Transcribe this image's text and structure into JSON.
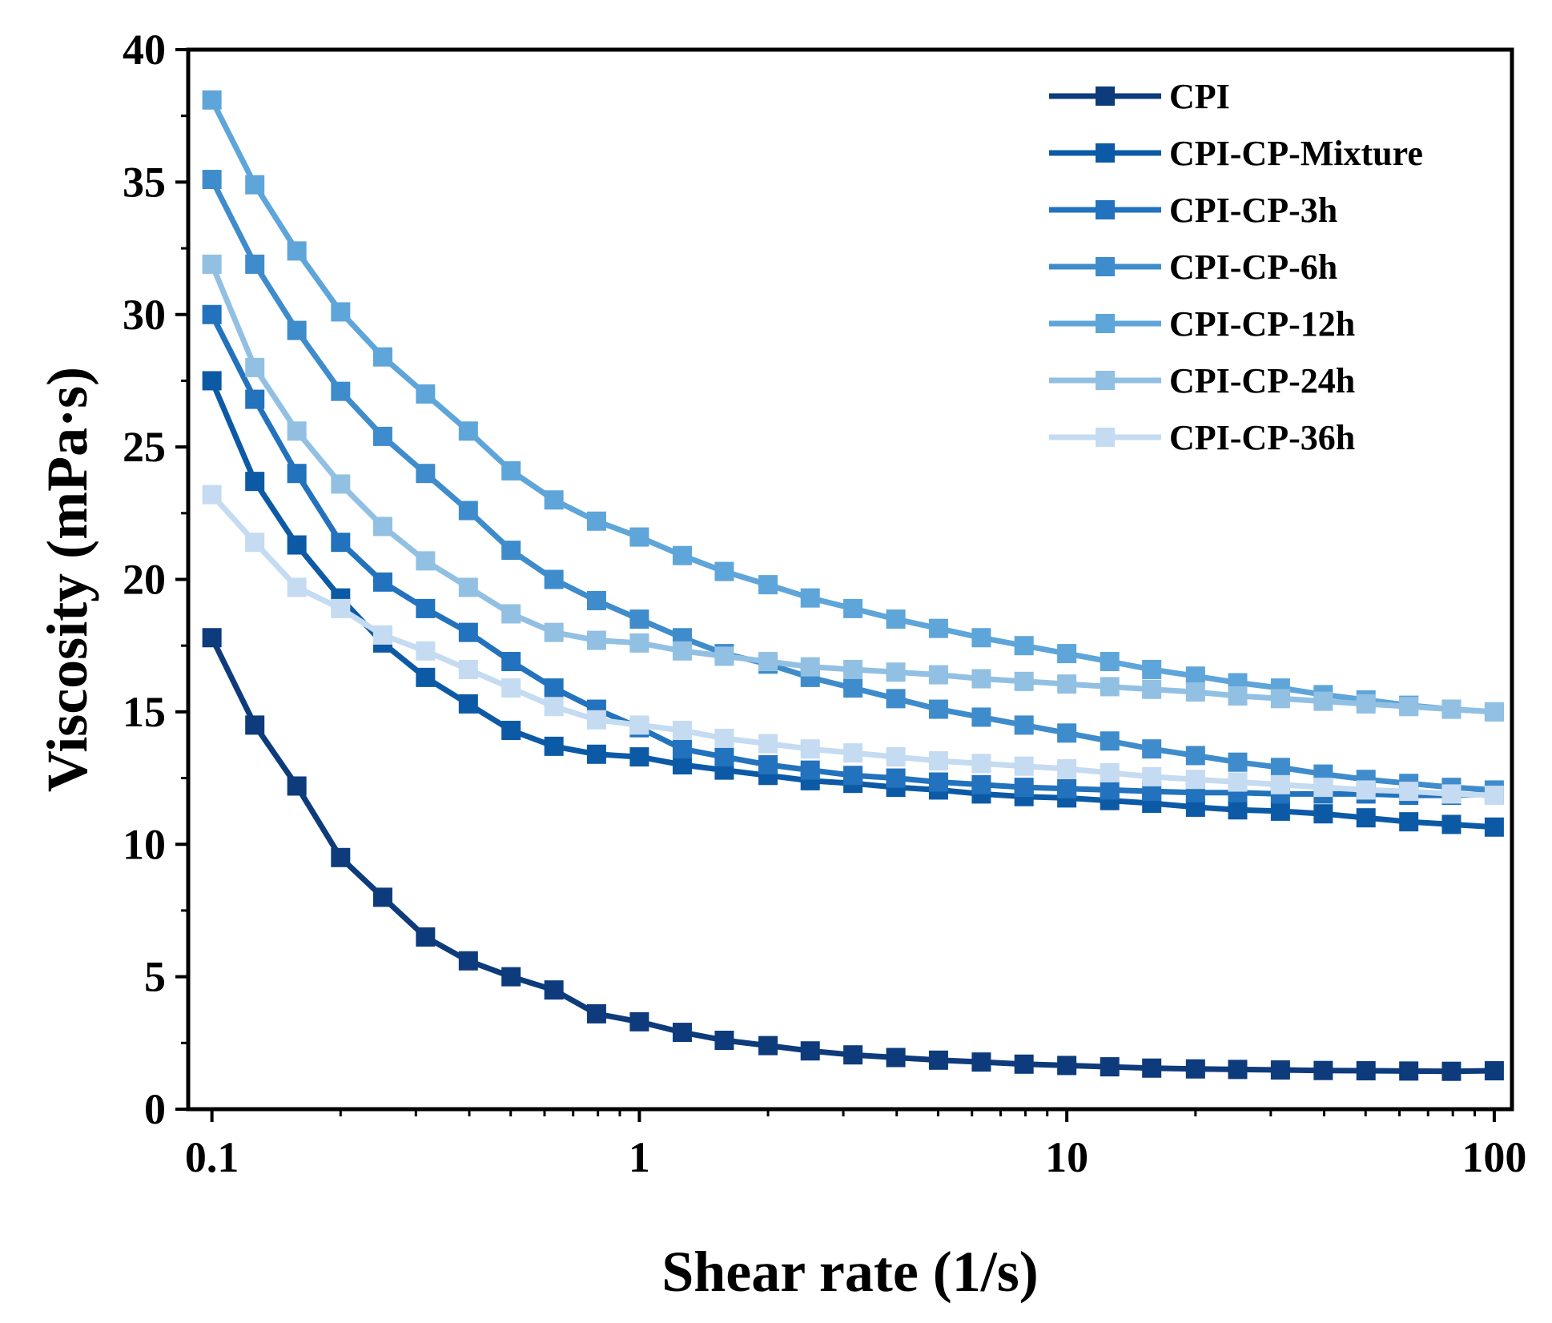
{
  "chart_data": {
    "type": "line",
    "title": "",
    "xlabel": "Shear rate (1/s)",
    "ylabel": "Viscosity (mPa·s)",
    "xscale": "log",
    "xlim": [
      0.088,
      110
    ],
    "ylim": [
      0,
      40
    ],
    "xticks": [
      0.1,
      1,
      10,
      100
    ],
    "xtick_labels": [
      "0.1",
      "1",
      "10",
      "100"
    ],
    "yticks": [
      0,
      5,
      10,
      15,
      20,
      25,
      30,
      35,
      40
    ],
    "ytick_labels": [
      "0",
      "5",
      "10",
      "15",
      "20",
      "25",
      "30",
      "35",
      "40"
    ],
    "grid": false,
    "legend_position": "top-right",
    "marker": "square",
    "x": [
      0.1,
      0.126,
      0.158,
      0.2,
      0.251,
      0.316,
      0.398,
      0.501,
      0.631,
      0.794,
      1,
      1.26,
      1.58,
      2,
      2.51,
      3.16,
      3.98,
      5.01,
      6.31,
      7.94,
      10,
      12.6,
      15.8,
      20,
      25.1,
      31.6,
      39.8,
      50.1,
      63.1,
      79.4,
      100
    ],
    "series": [
      {
        "name": "CPI",
        "color": "#0d3b7c",
        "values": [
          17.8,
          14.5,
          12.2,
          9.5,
          8.0,
          6.5,
          5.6,
          5.0,
          4.5,
          3.6,
          3.3,
          2.9,
          2.6,
          2.4,
          2.2,
          2.05,
          1.95,
          1.85,
          1.78,
          1.7,
          1.65,
          1.6,
          1.55,
          1.52,
          1.5,
          1.48,
          1.46,
          1.45,
          1.44,
          1.43,
          1.45
        ]
      },
      {
        "name": "CPI-CP-Mixture",
        "color": "#0c5aa6",
        "values": [
          27.5,
          23.7,
          21.3,
          19.3,
          17.6,
          16.3,
          15.3,
          14.3,
          13.7,
          13.4,
          13.3,
          13.0,
          12.8,
          12.6,
          12.4,
          12.3,
          12.15,
          12.05,
          11.9,
          11.8,
          11.75,
          11.65,
          11.55,
          11.4,
          11.3,
          11.25,
          11.15,
          11.0,
          10.85,
          10.75,
          10.65
        ]
      },
      {
        "name": "CPI-CP-3h",
        "color": "#2272bd",
        "values": [
          30.0,
          26.8,
          24.0,
          21.4,
          19.9,
          18.9,
          18.0,
          16.9,
          15.9,
          15.1,
          14.4,
          13.6,
          13.3,
          13.0,
          12.8,
          12.6,
          12.5,
          12.35,
          12.25,
          12.15,
          12.1,
          12.05,
          12.0,
          11.95,
          11.95,
          11.9,
          11.9,
          11.9,
          11.85,
          11.85,
          11.9
        ]
      },
      {
        "name": "CPI-CP-6h",
        "color": "#3f8ccc",
        "values": [
          35.1,
          31.9,
          29.4,
          27.1,
          25.4,
          24.0,
          22.6,
          21.1,
          20.0,
          19.2,
          18.5,
          17.8,
          17.2,
          16.8,
          16.3,
          15.9,
          15.5,
          15.1,
          14.8,
          14.5,
          14.2,
          13.9,
          13.6,
          13.35,
          13.1,
          12.9,
          12.65,
          12.45,
          12.3,
          12.15,
          12.05
        ]
      },
      {
        "name": "CPI-CP-12h",
        "color": "#5ea5d9",
        "values": [
          38.1,
          34.9,
          32.4,
          30.1,
          28.4,
          27.0,
          25.6,
          24.1,
          23.0,
          22.2,
          21.6,
          20.9,
          20.3,
          19.8,
          19.3,
          18.9,
          18.5,
          18.15,
          17.8,
          17.5,
          17.2,
          16.9,
          16.6,
          16.35,
          16.1,
          15.9,
          15.65,
          15.45,
          15.25,
          15.1,
          15.0
        ]
      },
      {
        "name": "CPI-CP-24h",
        "color": "#92c0e3",
        "values": [
          31.9,
          28.0,
          25.6,
          23.6,
          22.0,
          20.7,
          19.7,
          18.7,
          18.0,
          17.7,
          17.6,
          17.3,
          17.1,
          16.9,
          16.7,
          16.6,
          16.5,
          16.4,
          16.25,
          16.15,
          16.05,
          15.95,
          15.85,
          15.75,
          15.6,
          15.5,
          15.4,
          15.3,
          15.2,
          15.1,
          15.0
        ]
      },
      {
        "name": "CPI-CP-36h",
        "color": "#c4dbf1",
        "values": [
          23.2,
          21.4,
          19.7,
          18.9,
          17.9,
          17.3,
          16.6,
          15.9,
          15.2,
          14.7,
          14.5,
          14.3,
          14.0,
          13.8,
          13.6,
          13.45,
          13.3,
          13.15,
          13.05,
          12.95,
          12.85,
          12.7,
          12.55,
          12.45,
          12.35,
          12.25,
          12.15,
          12.05,
          12.0,
          11.9,
          11.85
        ]
      }
    ]
  }
}
